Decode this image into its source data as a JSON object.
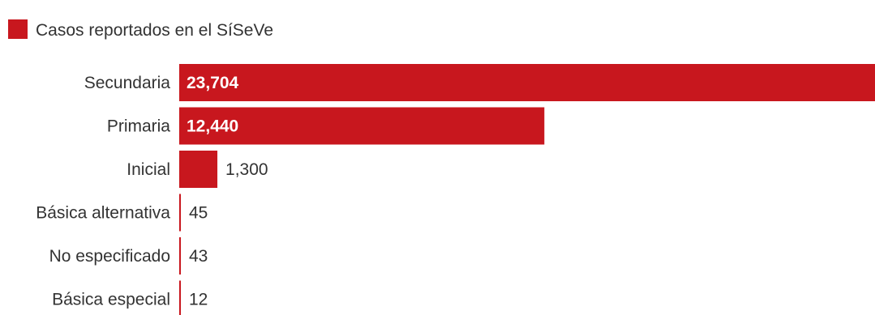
{
  "chart_data": {
    "type": "bar",
    "orientation": "horizontal",
    "categories": [
      "Secundaria",
      "Primaria",
      "Inicial",
      "Básica alternativa",
      "No especificado",
      "Básica especial"
    ],
    "values": [
      23704,
      12440,
      1300,
      45,
      43,
      12
    ],
    "value_labels": [
      "23,704",
      "12,440",
      "1,300",
      "45",
      "43",
      "12"
    ],
    "series": [
      {
        "name": "Casos reportados en el SíSeVe",
        "values": [
          23704,
          12440,
          1300,
          45,
          43,
          12
        ]
      }
    ],
    "xlim": [
      0,
      23704
    ],
    "grid": false,
    "legend_position": "top-left",
    "title": "",
    "xlabel": "",
    "ylabel": "",
    "colors": {
      "bar": "#c8171e",
      "text": "#333333",
      "label_inside": "#ffffff"
    }
  }
}
